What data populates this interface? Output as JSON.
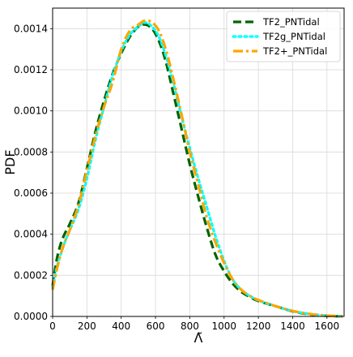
{
  "chart_data": {
    "type": "line",
    "xlabel": "Λ̃",
    "ylabel": "PDF",
    "xlim": [
      0,
      1700
    ],
    "ylim": [
      0,
      0.0015
    ],
    "xticks": [
      0,
      200,
      400,
      600,
      800,
      1000,
      1200,
      1400,
      1600
    ],
    "yticks": [
      0.0,
      0.0002,
      0.0004,
      0.0006,
      0.0008,
      0.001,
      0.0012,
      0.0014
    ],
    "xtick_labels": [
      "0",
      "200",
      "400",
      "600",
      "800",
      "1000",
      "1200",
      "1400",
      "1600"
    ],
    "ytick_labels": [
      "0.0000",
      "0.0002",
      "0.0004",
      "0.0006",
      "0.0008",
      "0.0010",
      "0.0012",
      "0.0014"
    ],
    "grid": true,
    "legend_position": "top-right",
    "series": [
      {
        "name": "TF2_PNTidal",
        "color": "#006400",
        "style": "dashed",
        "x": [
          0,
          25,
          50,
          75,
          100,
          150,
          200,
          250,
          300,
          350,
          400,
          450,
          500,
          540,
          580,
          620,
          660,
          700,
          750,
          800,
          850,
          900,
          950,
          1000,
          1050,
          1100,
          1150,
          1200,
          1300,
          1400,
          1500,
          1600,
          1700
        ],
        "y": [
          0.00015,
          0.00028,
          0.00036,
          0.00041,
          0.00045,
          0.00055,
          0.00072,
          0.0009,
          0.00105,
          0.00118,
          0.00128,
          0.00136,
          0.00141,
          0.00142,
          0.0014,
          0.00134,
          0.00124,
          0.0011,
          0.00092,
          0.00074,
          0.00058,
          0.00043,
          0.0003,
          0.00022,
          0.00016,
          0.00012,
          9.5e-05,
          7.5e-05,
          5e-05,
          2.5e-05,
          1e-05,
          3e-06,
          5e-07
        ]
      },
      {
        "name": "TF2g_PNTidal",
        "color": "#00FFFF",
        "style": "dotted",
        "x": [
          0,
          25,
          50,
          75,
          100,
          150,
          200,
          250,
          300,
          350,
          400,
          450,
          500,
          540,
          580,
          620,
          660,
          700,
          750,
          800,
          850,
          900,
          950,
          1000,
          1050,
          1100,
          1150,
          1200,
          1300,
          1400,
          1500,
          1600,
          1700
        ],
        "y": [
          0.00014,
          0.00024,
          0.00031,
          0.00037,
          0.00042,
          0.00052,
          0.00067,
          0.00086,
          0.00102,
          0.00117,
          0.00129,
          0.00137,
          0.00141,
          0.00143,
          0.00141,
          0.00136,
          0.00127,
          0.00115,
          0.00098,
          0.00082,
          0.00067,
          0.00053,
          0.00039,
          0.00027,
          0.00018,
          0.00013,
          0.0001,
          7.8e-05,
          5e-05,
          2.6e-05,
          1.2e-05,
          4e-06,
          1e-06
        ]
      },
      {
        "name": "TF2+_PNTidal",
        "color": "#FFA500",
        "style": "dashdot",
        "x": [
          0,
          25,
          50,
          75,
          100,
          150,
          200,
          250,
          300,
          350,
          400,
          450,
          500,
          540,
          580,
          620,
          660,
          700,
          750,
          800,
          850,
          900,
          950,
          1000,
          1050,
          1100,
          1150,
          1200,
          1300,
          1400,
          1500,
          1600,
          1700
        ],
        "y": [
          0.00013,
          0.00023,
          0.00031,
          0.00037,
          0.00042,
          0.00054,
          0.00071,
          0.00088,
          0.00102,
          0.00114,
          0.0013,
          0.00139,
          0.00142,
          0.00144,
          0.00143,
          0.00139,
          0.0013,
          0.00117,
          0.00099,
          0.0008,
          0.00064,
          0.00048,
          0.00036,
          0.00026,
          0.00018,
          0.00013,
          0.0001,
          8e-05,
          5e-05,
          2.7e-05,
          1.2e-05,
          4e-06,
          1e-06
        ]
      }
    ]
  }
}
